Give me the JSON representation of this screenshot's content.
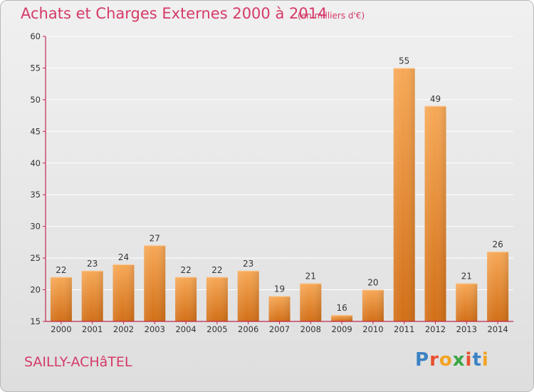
{
  "header": {
    "title": "Achats et Charges Externes 2000 à 2014",
    "subtitle": "(en milliers d'€)"
  },
  "footer": {
    "commune": "SAILLY-ACHâTEL",
    "brand": "Proxiti",
    "brand_colors": [
      "#3b82c4",
      "#e8502f",
      "#f2a323",
      "#3aa645",
      "#e8502f",
      "#3b82c4",
      "#f2a323"
    ]
  },
  "colors": {
    "text_accent": "#d53a67",
    "bar_light": "#f7a957",
    "bar_dark": "#d26f17",
    "axis": "#c0294f",
    "grid": "#ffffff"
  },
  "chart_data": {
    "type": "bar",
    "title": "Achats et Charges Externes 2000 à 2014",
    "subtitle": "(en milliers d'€)",
    "categories": [
      "2000",
      "2001",
      "2002",
      "2003",
      "2004",
      "2005",
      "2006",
      "2007",
      "2008",
      "2009",
      "2010",
      "2011",
      "2012",
      "2013",
      "2014"
    ],
    "values": [
      22,
      23,
      24,
      27,
      22,
      22,
      23,
      19,
      21,
      16,
      20,
      55,
      49,
      21,
      26
    ],
    "ylim": [
      15,
      60
    ],
    "yticks": [
      15,
      20,
      25,
      30,
      35,
      40,
      45,
      50,
      55,
      60
    ],
    "grid": true,
    "data_labels": true
  }
}
